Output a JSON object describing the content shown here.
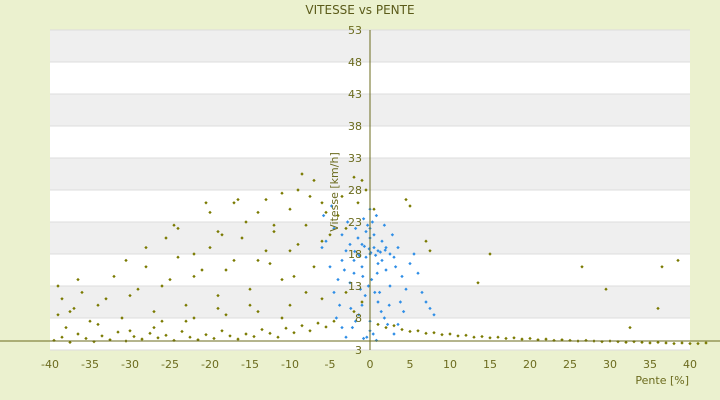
{
  "chart_data": {
    "type": "scatter",
    "title": "VITESSE vs PENTE",
    "xlabel": "Pente [%]",
    "ylabel": "Vitesse [km/h]",
    "xlim": [
      -40,
      40
    ],
    "ylim": [
      3,
      53
    ],
    "x_ticks": [
      -40,
      -35,
      -30,
      -25,
      -20,
      -15,
      -10,
      -5,
      0,
      5,
      10,
      15,
      20,
      25,
      30,
      35,
      40
    ],
    "y_ticks": [
      3,
      8,
      13,
      18,
      23,
      28,
      33,
      38,
      43,
      48,
      53
    ],
    "grid": "horizontal alternating bands",
    "legend": "none",
    "colors": {
      "background": "#ebf1cf",
      "band_light": "#ffffff",
      "band_gray": "#efefef",
      "axis": "#6b6b1e",
      "series_all": "#7a7a00",
      "series_recent": "#2f8ee6"
    },
    "series": [
      {
        "color": "#7a7a00",
        "points": [
          [
            -39.5,
            4.5
          ],
          [
            -38.5,
            5.0
          ],
          [
            -37.5,
            4.2
          ],
          [
            -36.5,
            5.5
          ],
          [
            -35.5,
            4.8
          ],
          [
            -34.5,
            4.3
          ],
          [
            -33.5,
            5.2
          ],
          [
            -32.5,
            4.6
          ],
          [
            -31.5,
            5.8
          ],
          [
            -30.5,
            4.4
          ],
          [
            -29.5,
            5.1
          ],
          [
            -28.5,
            4.7
          ],
          [
            -27.5,
            5.6
          ],
          [
            -26.5,
            4.9
          ],
          [
            -25.5,
            5.3
          ],
          [
            -24.5,
            4.5
          ],
          [
            -23.5,
            5.9
          ],
          [
            -22.5,
            5.0
          ],
          [
            -21.5,
            4.6
          ],
          [
            -20.5,
            5.4
          ],
          [
            -19.5,
            4.8
          ],
          [
            -18.5,
            6.0
          ],
          [
            -17.5,
            5.2
          ],
          [
            -16.5,
            4.7
          ],
          [
            -15.5,
            5.5
          ],
          [
            -14.5,
            5.1
          ],
          [
            -13.5,
            6.2
          ],
          [
            -12.5,
            5.6
          ],
          [
            -11.5,
            5.0
          ],
          [
            -10.5,
            6.4
          ],
          [
            -9.5,
            5.7
          ],
          [
            -8.5,
            6.8
          ],
          [
            -7.5,
            6.0
          ],
          [
            -6.5,
            7.2
          ],
          [
            -5.5,
            6.6
          ],
          [
            -4.5,
            7.5
          ],
          [
            -39.0,
            8.5
          ],
          [
            -37.0,
            9.5
          ],
          [
            -35.0,
            7.5
          ],
          [
            -33.0,
            11.0
          ],
          [
            -31.0,
            8.0
          ],
          [
            -29.0,
            12.5
          ],
          [
            -27.0,
            9.0
          ],
          [
            -25.0,
            14.0
          ],
          [
            -23.0,
            10.0
          ],
          [
            -21.0,
            15.5
          ],
          [
            -19.0,
            11.5
          ],
          [
            -17.0,
            17.0
          ],
          [
            -15.0,
            12.5
          ],
          [
            -13.0,
            18.5
          ],
          [
            -11.0,
            14.0
          ],
          [
            -9.0,
            19.5
          ],
          [
            -7.0,
            16.0
          ],
          [
            -5.0,
            21.0
          ],
          [
            -36.0,
            12.0
          ],
          [
            -34.0,
            10.0
          ],
          [
            -32.0,
            14.5
          ],
          [
            -30.0,
            11.5
          ],
          [
            -28.0,
            16.0
          ],
          [
            -26.0,
            13.0
          ],
          [
            -24.0,
            17.5
          ],
          [
            -22.0,
            14.5
          ],
          [
            -20.0,
            19.0
          ],
          [
            -18.0,
            15.5
          ],
          [
            -16.0,
            20.5
          ],
          [
            -14.0,
            17.0
          ],
          [
            -12.0,
            21.5
          ],
          [
            -10.0,
            18.5
          ],
          [
            -8.0,
            22.5
          ],
          [
            -6.0,
            20.0
          ],
          [
            -4.0,
            24.0
          ],
          [
            -3.0,
            22.0
          ],
          [
            -25.5,
            20.5
          ],
          [
            -24.5,
            22.5
          ],
          [
            -22.0,
            18.0
          ],
          [
            -20.0,
            24.5
          ],
          [
            -18.5,
            21.0
          ],
          [
            -17.0,
            26.0
          ],
          [
            -15.5,
            23.0
          ],
          [
            -14.0,
            24.5
          ],
          [
            -13.0,
            26.5
          ],
          [
            -12.0,
            22.5
          ],
          [
            -11.0,
            27.5
          ],
          [
            -10.0,
            25.0
          ],
          [
            -9.0,
            28.0
          ],
          [
            -8.5,
            30.5
          ],
          [
            -7.5,
            27.0
          ],
          [
            -7.0,
            29.5
          ],
          [
            -6.0,
            26.0
          ],
          [
            -5.5,
            24.5
          ],
          [
            -20.5,
            26.0
          ],
          [
            -16.5,
            26.5
          ],
          [
            -24.0,
            22.0
          ],
          [
            -19.0,
            21.5
          ],
          [
            -12.5,
            16.5
          ],
          [
            -9.5,
            14.5
          ],
          [
            -38.0,
            6.5
          ],
          [
            -34.0,
            7.0
          ],
          [
            -30.0,
            6.0
          ],
          [
            -26.0,
            7.5
          ],
          [
            -22.0,
            8.0
          ],
          [
            -18.0,
            8.5
          ],
          [
            -14.0,
            9.0
          ],
          [
            -10.0,
            10.0
          ],
          [
            -6.0,
            11.0
          ],
          [
            -3.0,
            12.0
          ],
          [
            -2.0,
            9.0
          ],
          [
            -1.0,
            10.5
          ],
          [
            1.0,
            7.0
          ],
          [
            2.0,
            6.5
          ],
          [
            3.0,
            6.8
          ],
          [
            4.0,
            6.2
          ],
          [
            5.0,
            5.9
          ],
          [
            6.0,
            6.0
          ],
          [
            7.0,
            5.6
          ],
          [
            8.0,
            5.7
          ],
          [
            9.0,
            5.4
          ],
          [
            10.0,
            5.5
          ],
          [
            11.0,
            5.2
          ],
          [
            12.0,
            5.3
          ],
          [
            13.0,
            5.0
          ],
          [
            14.0,
            5.1
          ],
          [
            15.0,
            4.9
          ],
          [
            16.0,
            5.0
          ],
          [
            17.0,
            4.8
          ],
          [
            18.0,
            4.9
          ],
          [
            19.0,
            4.7
          ],
          [
            20.0,
            4.8
          ],
          [
            21.0,
            4.6
          ],
          [
            22.0,
            4.7
          ],
          [
            23.0,
            4.5
          ],
          [
            24.0,
            4.6
          ],
          [
            25.0,
            4.5
          ],
          [
            26.0,
            4.4
          ],
          [
            27.0,
            4.5
          ],
          [
            28.0,
            4.4
          ],
          [
            29.0,
            4.3
          ],
          [
            30.0,
            4.4
          ],
          [
            31.0,
            4.3
          ],
          [
            32.0,
            4.2
          ],
          [
            33.0,
            4.3
          ],
          [
            34.0,
            4.2
          ],
          [
            35.0,
            4.1
          ],
          [
            36.0,
            4.2
          ],
          [
            37.0,
            4.1
          ],
          [
            38.0,
            4.0
          ],
          [
            39.0,
            4.1
          ],
          [
            40.0,
            4.0
          ],
          [
            41.0,
            4.0
          ],
          [
            42.0,
            4.1
          ],
          [
            4.5,
            26.5
          ],
          [
            5.0,
            25.5
          ],
          [
            7.0,
            20.0
          ],
          [
            7.5,
            18.5
          ],
          [
            13.5,
            13.5
          ],
          [
            15.0,
            18.0
          ],
          [
            26.5,
            16.0
          ],
          [
            29.5,
            12.5
          ],
          [
            32.5,
            6.5
          ],
          [
            36.0,
            9.5
          ],
          [
            38.5,
            17.0
          ],
          [
            36.5,
            16.0
          ],
          [
            -39.0,
            13.0
          ],
          [
            -38.5,
            11.0
          ],
          [
            -37.5,
            9.0
          ],
          [
            -36.5,
            14.0
          ],
          [
            -30.5,
            17.0
          ],
          [
            -28.0,
            19.0
          ],
          [
            -2.0,
            30.0
          ],
          [
            -1.0,
            29.5
          ],
          [
            -3.5,
            27.0
          ],
          [
            -0.5,
            28.0
          ],
          [
            0.5,
            25.0
          ],
          [
            -1.5,
            26.0
          ],
          [
            -8.0,
            12.0
          ],
          [
            -11.0,
            8.0
          ],
          [
            -15.0,
            10.0
          ],
          [
            -19.0,
            9.5
          ],
          [
            -23.0,
            7.5
          ],
          [
            -27.0,
            6.5
          ]
        ]
      },
      {
        "color": "#2f8ee6",
        "points": [
          [
            0.0,
            18.0
          ],
          [
            0.5,
            19.0
          ],
          [
            -0.5,
            17.5
          ],
          [
            1.0,
            18.5
          ],
          [
            -1.0,
            19.5
          ],
          [
            1.5,
            17.0
          ],
          [
            -1.5,
            18.0
          ],
          [
            2.0,
            19.0
          ],
          [
            -2.0,
            17.0
          ],
          [
            2.5,
            18.0
          ],
          [
            -2.5,
            19.5
          ],
          [
            3.0,
            17.5
          ],
          [
            -3.0,
            18.5
          ],
          [
            3.5,
            19.0
          ],
          [
            -3.5,
            17.0
          ],
          [
            0.0,
            20.5
          ],
          [
            0.5,
            21.0
          ],
          [
            -0.5,
            21.5
          ],
          [
            1.0,
            16.5
          ],
          [
            -1.0,
            16.0
          ],
          [
            1.5,
            20.0
          ],
          [
            -1.5,
            20.5
          ],
          [
            2.0,
            15.5
          ],
          [
            -2.0,
            15.0
          ],
          [
            0.0,
            22.0
          ],
          [
            0.3,
            23.0
          ],
          [
            -0.3,
            22.5
          ],
          [
            0.8,
            24.0
          ],
          [
            -0.8,
            23.5
          ],
          [
            0.0,
            25.0
          ],
          [
            0.2,
            14.0
          ],
          [
            -0.2,
            13.0
          ],
          [
            0.6,
            12.0
          ],
          [
            -0.6,
            11.5
          ],
          [
            1.0,
            10.5
          ],
          [
            -1.0,
            10.0
          ],
          [
            1.4,
            9.0
          ],
          [
            -1.4,
            8.5
          ],
          [
            1.8,
            8.0
          ],
          [
            -1.8,
            7.5
          ],
          [
            2.2,
            7.0
          ],
          [
            -2.2,
            6.5
          ],
          [
            0.0,
            6.0
          ],
          [
            0.4,
            5.5
          ],
          [
            -0.4,
            5.0
          ],
          [
            0.8,
            4.5
          ],
          [
            -0.8,
            4.8
          ],
          [
            0.0,
            7.5
          ],
          [
            -4.0,
            14.0
          ],
          [
            -4.5,
            12.0
          ],
          [
            -3.8,
            10.0
          ],
          [
            -4.2,
            8.0
          ],
          [
            -3.5,
            6.5
          ],
          [
            -3.0,
            5.0
          ],
          [
            4.0,
            14.5
          ],
          [
            4.5,
            12.5
          ],
          [
            3.8,
            10.5
          ],
          [
            4.2,
            9.0
          ],
          [
            3.5,
            7.0
          ],
          [
            3.0,
            5.5
          ],
          [
            -5.0,
            16.0
          ],
          [
            -5.5,
            20.0
          ],
          [
            -4.5,
            22.0
          ],
          [
            -3.5,
            21.0
          ],
          [
            5.0,
            16.5
          ],
          [
            5.5,
            18.0
          ],
          [
            -2.5,
            13.5
          ],
          [
            2.5,
            13.0
          ],
          [
            -1.2,
            12.5
          ],
          [
            1.2,
            12.0
          ],
          [
            -0.9,
            14.5
          ],
          [
            0.9,
            15.0
          ],
          [
            6.0,
            15.0
          ],
          [
            6.5,
            12.0
          ],
          [
            7.0,
            10.5
          ],
          [
            7.5,
            9.5
          ],
          [
            8.0,
            8.5
          ],
          [
            -6.0,
            19.0
          ],
          [
            -5.8,
            24.0
          ],
          [
            -4.8,
            25.5
          ],
          [
            -2.8,
            23.0
          ],
          [
            -1.8,
            22.0
          ],
          [
            1.8,
            22.5
          ],
          [
            2.8,
            21.0
          ],
          [
            3.2,
            16.0
          ],
          [
            -3.2,
            15.5
          ],
          [
            2.4,
            10.0
          ],
          [
            -2.4,
            9.5
          ],
          [
            0.1,
            18.2
          ],
          [
            -0.1,
            18.8
          ],
          [
            0.7,
            17.8
          ],
          [
            -0.7,
            19.2
          ],
          [
            1.3,
            18.3
          ],
          [
            -1.3,
            17.7
          ],
          [
            1.9,
            18.6
          ],
          [
            -1.9,
            18.4
          ]
        ]
      }
    ]
  }
}
